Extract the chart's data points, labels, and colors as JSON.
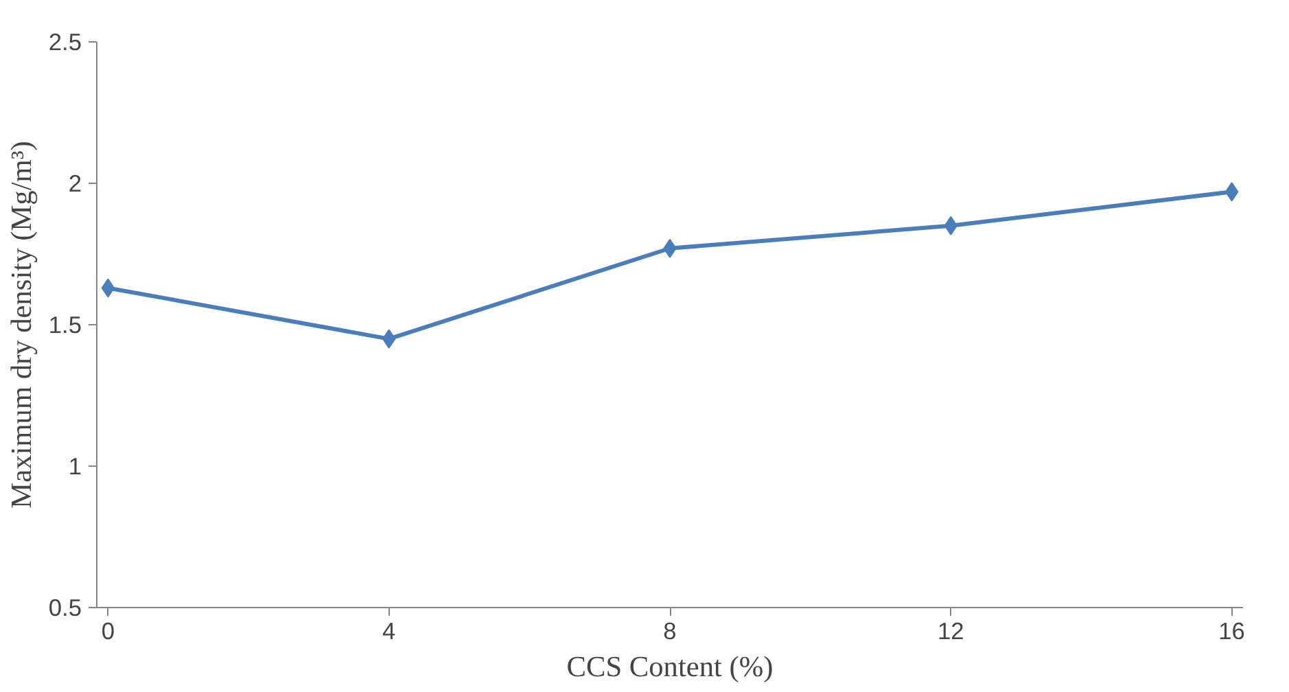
{
  "chart_data": {
    "type": "line",
    "xlabel": "CCS Content (%)",
    "ylabel": "Maximum dry density (Mg/m³)",
    "categories": [
      "0",
      "4",
      "8",
      "12",
      "16"
    ],
    "series": [
      {
        "color": "#4a7ebb",
        "values": [
          1.63,
          1.45,
          1.77,
          1.85,
          1.97
        ]
      }
    ],
    "ylim": [
      0.5,
      2.5
    ],
    "yticks": [
      0.5,
      1,
      1.5,
      2,
      2.5
    ],
    "marker": "diamond",
    "line_style": "solid",
    "grid": false
  }
}
